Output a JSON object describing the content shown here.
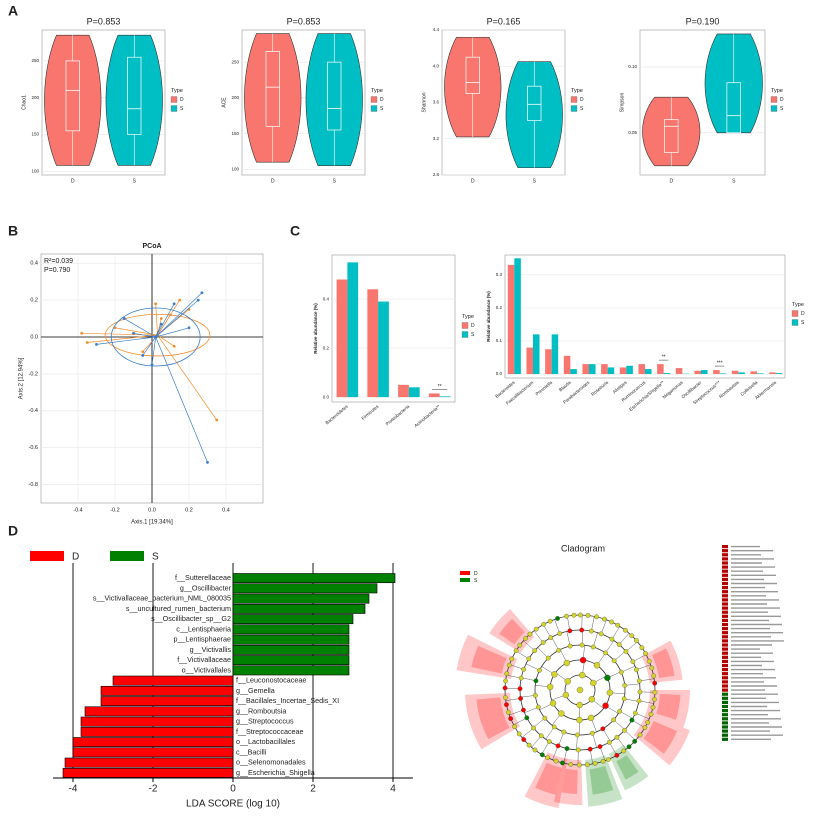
{
  "panel_labels": [
    "A",
    "B",
    "C",
    "D"
  ],
  "chart_data": [
    {
      "type": "violin",
      "title": "P=0.853",
      "ylabel": "Chao1",
      "categories": [
        "D",
        "S"
      ],
      "legend_title": "Type",
      "series": [
        {
          "name": "D",
          "color": "#f8766d",
          "min": 108,
          "q1": 155,
          "median": 210,
          "q3": 250,
          "max": 285
        },
        {
          "name": "S",
          "color": "#00bfc4",
          "min": 108,
          "q1": 150,
          "median": 185,
          "q3": 255,
          "max": 285
        }
      ],
      "ylim": [
        95,
        292
      ],
      "yticks": [
        100,
        150,
        200,
        250
      ],
      "grid": true
    },
    {
      "type": "violin",
      "title": "P=0.853",
      "ylabel": "ACE",
      "categories": [
        "D",
        "S"
      ],
      "legend_title": "Type",
      "series": [
        {
          "name": "D",
          "color": "#f8766d",
          "min": 110,
          "q1": 160,
          "median": 215,
          "q3": 265,
          "max": 290
        },
        {
          "name": "S",
          "color": "#00bfc4",
          "min": 105,
          "q1": 155,
          "median": 185,
          "q3": 250,
          "max": 290
        }
      ],
      "ylim": [
        92,
        295
      ],
      "yticks": [
        100,
        150,
        200,
        250
      ],
      "grid": true
    },
    {
      "type": "violin",
      "title": "P=0.165",
      "ylabel": "Shannon",
      "categories": [
        "D",
        "S"
      ],
      "legend_title": "Type",
      "series": [
        {
          "name": "D",
          "color": "#f8766d",
          "min": 3.22,
          "q1": 3.7,
          "median": 3.82,
          "q3": 4.1,
          "max": 4.32
        },
        {
          "name": "S",
          "color": "#00bfc4",
          "min": 2.88,
          "q1": 3.4,
          "median": 3.58,
          "q3": 3.78,
          "max": 4.05
        }
      ],
      "ylim": [
        2.8,
        4.4
      ],
      "yticks": [
        {
          "value": 2.8,
          "label": "2.8"
        },
        {
          "value": 3.2,
          "label": "3.2"
        },
        {
          "value": 3.6,
          "label": "3.6"
        },
        {
          "value": 4,
          "label": "4.0"
        },
        {
          "value": 4.4,
          "label": "4.4"
        }
      ],
      "grid": true
    },
    {
      "type": "violin",
      "title": "P=0.190",
      "ylabel": "Simpson",
      "categories": [
        "D",
        "S"
      ],
      "legend_title": "Type",
      "series": [
        {
          "name": "D",
          "color": "#f8766d",
          "min": 0.025,
          "q1": 0.035,
          "median": 0.055,
          "q3": 0.06,
          "max": 0.077
        },
        {
          "name": "S",
          "color": "#00bfc4",
          "min": 0.05,
          "q1": 0.05,
          "median": 0.063,
          "q3": 0.088,
          "max": 0.125
        }
      ],
      "ylim": [
        0.018,
        0.128
      ],
      "yticks": [
        0.05,
        {
          "value": 0.1,
          "label": "0.10"
        }
      ],
      "grid": true
    },
    {
      "type": "scatter",
      "title": "PCoA",
      "xlabel": "Axis.1  [19.34%]",
      "ylabel": "Axis.2  [12.94%]",
      "annotations": [
        "R²=0.039",
        "P=0.790"
      ],
      "series": [
        {
          "name": "D",
          "color": "#f28e2b",
          "centroid": [
            0.03,
            0.01
          ],
          "x": [
            -0.38,
            -0.35,
            -0.2,
            0.05,
            0.1,
            0.15,
            0.2,
            0.35,
            0.12,
            -0.05,
            0.02
          ],
          "y": [
            0.02,
            -0.03,
            0.05,
            0.1,
            0.12,
            0.2,
            0.15,
            -0.45,
            -0.05,
            -0.08,
            0.18
          ]
        },
        {
          "name": "S",
          "color": "#3a7dc9",
          "centroid": [
            0.02,
            0.0
          ],
          "x": [
            -0.3,
            -0.15,
            -0.05,
            0.0,
            0.12,
            0.2,
            0.27,
            0.3,
            0.25,
            -0.1,
            0.05
          ],
          "y": [
            -0.04,
            0.1,
            -0.1,
            -0.15,
            0.18,
            0.05,
            0.24,
            -0.68,
            0.2,
            0.02,
            0.07
          ]
        }
      ],
      "xlim": [
        -0.6,
        0.6
      ],
      "xticks": [
        -0.4,
        -0.2,
        {
          "value": 0,
          "label": "0.0"
        },
        0.2,
        0.4
      ],
      "ylim": [
        -0.9,
        0.45
      ],
      "yticks": [
        -0.8,
        -0.6,
        -0.4,
        -0.2,
        {
          "value": 0,
          "label": "0.0"
        },
        0.2,
        0.4
      ],
      "grid": true
    },
    {
      "type": "bar",
      "ylabel": "Relative abundance (%)",
      "legend_title": "Type",
      "categories": [
        "Bacteroidetes",
        "Firmicutes",
        "Proteobacteria",
        "Actinobacteria**"
      ],
      "series": [
        {
          "name": "D",
          "color": "#f8766d",
          "values": [
            0.48,
            0.44,
            0.05,
            0.015
          ]
        },
        {
          "name": "S",
          "color": "#00bfc4",
          "values": [
            0.55,
            0.39,
            0.04,
            0.003
          ]
        }
      ],
      "annotations": [
        {
          "text": "**",
          "category": "Actinobacteria**"
        }
      ],
      "ylim": [
        -0.02,
        0.58
      ],
      "yticks": [
        {
          "value": 0,
          "label": "0.0"
        },
        0.2,
        0.4
      ],
      "grid": true
    },
    {
      "type": "bar",
      "ylabel": "Relative abundance (%)",
      "legend_title": "Type",
      "categories": [
        "Bacteroides",
        "Faecalibacterium",
        "Prevotella",
        "Blautia",
        "Parabacteroides",
        "Roseburia",
        "Alistipes",
        "Ruminococcus",
        "Escherichia/Shigella**",
        "Megamonas",
        "Oscillibacter",
        "Streptococcus***",
        "Romboutsia",
        "Collinsella",
        "Akkermansia"
      ],
      "series": [
        {
          "name": "D",
          "color": "#f8766d",
          "values": [
            0.33,
            0.08,
            0.075,
            0.055,
            0.03,
            0.03,
            0.02,
            0.03,
            0.03,
            0.018,
            0.01,
            0.012,
            0.01,
            0.008,
            0.005
          ]
        },
        {
          "name": "S",
          "color": "#00bfc4",
          "values": [
            0.35,
            0.12,
            0.12,
            0.015,
            0.03,
            0.02,
            0.025,
            0.015,
            0.003,
            0.001,
            0.012,
            0.002,
            0.005,
            0.002,
            0.003
          ]
        }
      ],
      "annotations": [
        {
          "text": "**",
          "category": "Escherichia/Shigella**"
        },
        {
          "text": "***",
          "category": "Streptococcus***"
        }
      ],
      "ylim": [
        -0.012,
        0.36
      ],
      "yticks": [
        {
          "value": 0,
          "label": "0.0"
        },
        0.1,
        0.2,
        0.3
      ],
      "grid": true
    },
    {
      "type": "hbar",
      "xlabel": "LDA SCORE (log 10)",
      "legend": [
        {
          "name": "D",
          "color": "#ff0000"
        },
        {
          "name": "S",
          "color": "#008000"
        }
      ],
      "categories": [
        "f__Sutterellaceae",
        "g__Oscillibacter",
        "s__Victivallaceae_bacterium_NML_080035",
        "s__uncultured_rumen_bacterium",
        "s__Oscillibacter_sp__G2",
        "c__Lentisphaeria",
        "p__Lentisphaerae",
        "g__Victivallis",
        "f__Victivallaceae",
        "o__Victivallales",
        "f__Leuconostocaceae",
        "g__Gemella",
        "f__Bacillales_Incertae_Sedis_XI",
        "g__Romboutsia",
        "g__Streptococcus",
        "f__Streptococcaceae",
        "o__Lactobacillales",
        "c__Bacilli",
        "o__Selenomonadales",
        "g__Escherichia_Shigella"
      ],
      "classes": [
        "S",
        "S",
        "S",
        "S",
        "S",
        "S",
        "S",
        "S",
        "S",
        "S",
        "D",
        "D",
        "D",
        "D",
        "D",
        "D",
        "D",
        "D",
        "D",
        "D"
      ],
      "values": [
        4.05,
        3.6,
        3.4,
        3.3,
        3.0,
        2.9,
        2.9,
        2.9,
        2.9,
        2.9,
        -3.0,
        -3.3,
        -3.3,
        -3.7,
        -3.8,
        -3.8,
        -4.0,
        -4.0,
        -4.2,
        -4.25
      ],
      "xlim": [
        -4.5,
        4.5
      ],
      "xticks": [
        -4,
        -2,
        0,
        2,
        4
      ],
      "grid": true
    }
  ],
  "cladogram": {
    "title": "Cladogram",
    "legend": [
      {
        "name": "D",
        "color": "#ff0000"
      },
      {
        "name": "S",
        "color": "#008000"
      }
    ]
  }
}
